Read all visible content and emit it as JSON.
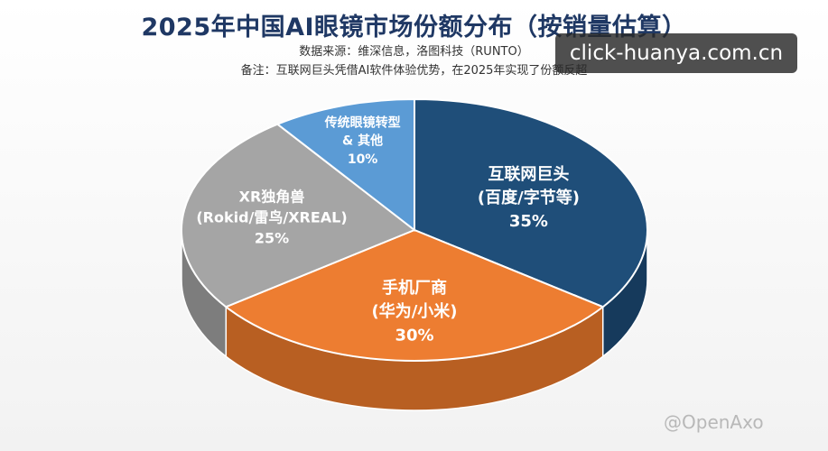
{
  "chart_data": {
    "type": "pie",
    "title": "2025年中国AI眼镜市场份额分布（按销量估算）",
    "source": "数据来源：维深信息，洛图科技（RUNTO）",
    "note": "备注：互联网巨头凭借AI软件体验优势，在2025年实现了份额反超",
    "slices": [
      {
        "label": "互联网巨头",
        "sublabel": "(百度/字节等)",
        "value": 35,
        "value_label": "35%",
        "color": "#1f4e79",
        "side_color": "#163a5c",
        "text_color": "#ffffff"
      },
      {
        "label": "手机厂商",
        "sublabel": "(华为/小米)",
        "value": 30,
        "value_label": "30%",
        "color": "#ed7d31",
        "side_color": "#b85f22",
        "text_color": "#ffffff"
      },
      {
        "label": "XR独角兽",
        "sublabel": "(Rokid/雷鸟/XREAL)",
        "value": 25,
        "value_label": "25%",
        "color": "#a5a5a5",
        "side_color": "#7d7d7d",
        "text_color": "#ffffff"
      },
      {
        "label": "传统眼镜转型",
        "sublabel": "& 其他",
        "value": 10,
        "value_label": "10%",
        "color": "#5b9bd5",
        "side_color": "#4279ab",
        "text_color": "#ffffff"
      }
    ]
  },
  "watermark": {
    "url": "click-huanya.com.cn",
    "credit": "@OpenAxo"
  }
}
